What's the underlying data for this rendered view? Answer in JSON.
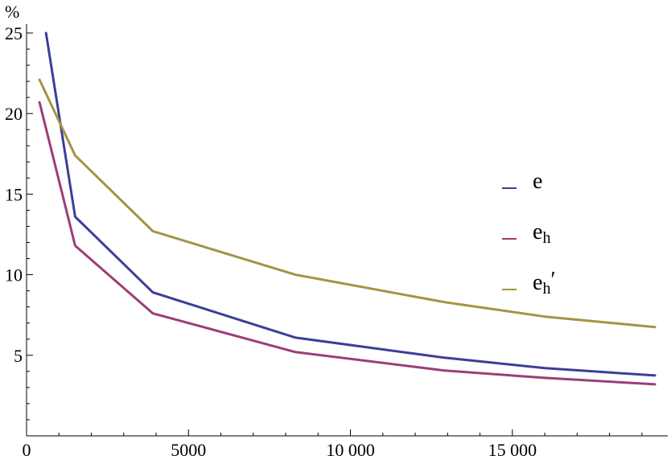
{
  "chart_data": {
    "type": "line",
    "ylabel": "%",
    "xlim": [
      0,
      19500
    ],
    "ylim": [
      0,
      25
    ],
    "x_ticks": [
      {
        "value": 0,
        "label": "0"
      },
      {
        "value": 5000,
        "label": "5000"
      },
      {
        "value": 10000,
        "label": "10 000"
      },
      {
        "value": 15000,
        "label": "15 000"
      }
    ],
    "y_ticks": [
      {
        "value": 5,
        "label": "5"
      },
      {
        "value": 10,
        "label": "10"
      },
      {
        "value": 15,
        "label": "15"
      },
      {
        "value": 20,
        "label": "20"
      },
      {
        "value": 25,
        "label": "25"
      }
    ],
    "legend_position": "right",
    "series": [
      {
        "name": "e",
        "subscript": "",
        "prime": "",
        "color": "#3d3d9a",
        "points": [
          [
            600,
            25.0
          ],
          [
            1500,
            13.6
          ],
          [
            3900,
            8.9
          ],
          [
            8300,
            6.1
          ],
          [
            12900,
            4.85
          ],
          [
            16000,
            4.2
          ],
          [
            19400,
            3.75
          ]
        ]
      },
      {
        "name": "e",
        "subscript": "h",
        "prime": "",
        "color": "#9b3e76",
        "points": [
          [
            400,
            20.7
          ],
          [
            1500,
            11.8
          ],
          [
            3900,
            7.6
          ],
          [
            8300,
            5.2
          ],
          [
            12900,
            4.05
          ],
          [
            16000,
            3.6
          ],
          [
            19400,
            3.2
          ]
        ]
      },
      {
        "name": "e",
        "subscript": "h",
        "prime": "′",
        "color": "#a39441",
        "points": [
          [
            400,
            22.1
          ],
          [
            1500,
            17.4
          ],
          [
            3900,
            12.7
          ],
          [
            8300,
            10.0
          ],
          [
            12900,
            8.3
          ],
          [
            16000,
            7.4
          ],
          [
            19400,
            6.75
          ]
        ]
      }
    ]
  }
}
